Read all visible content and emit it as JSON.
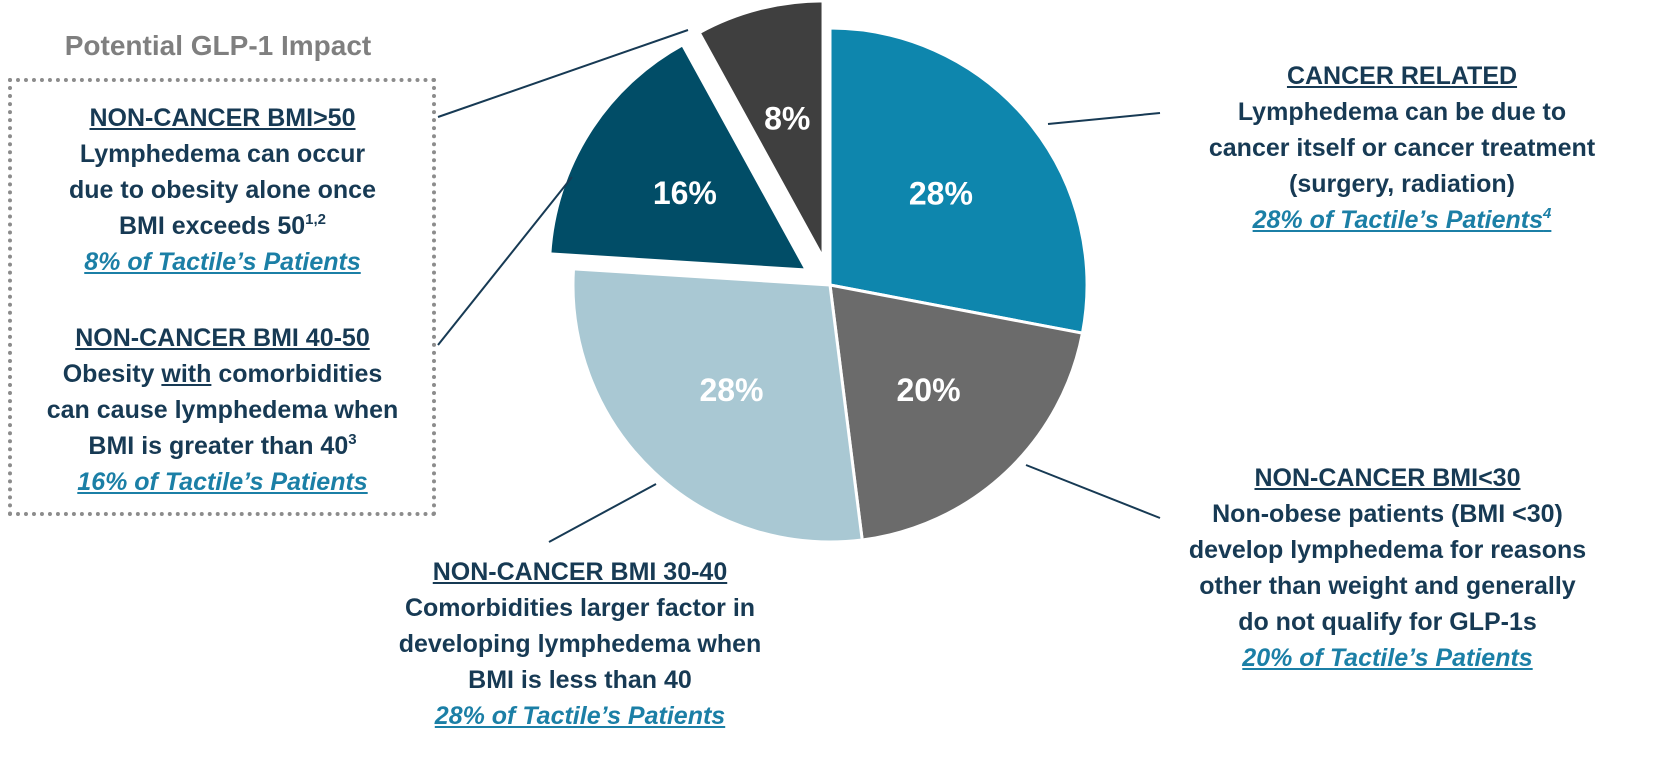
{
  "chart_data": {
    "type": "pie",
    "categories": [
      "CANCER RELATED",
      "NON-CANCER BMI<30",
      "NON-CANCER BMI 30-40",
      "NON-CANCER BMI 40-50",
      "NON-CANCER BMI>50"
    ],
    "values": [
      28,
      20,
      28,
      16,
      8
    ],
    "value_labels": [
      "28%",
      "20%",
      "28%",
      "16%",
      "8%"
    ],
    "colors": [
      "#0e86ad",
      "#6b6b6b",
      "#a9c8d3",
      "#014d67",
      "#3f3f3f"
    ],
    "exploded": [
      "NON-CANCER BMI 40-50",
      "NON-CANCER BMI>50"
    ]
  },
  "impact_group": {
    "title": "Potential GLP-1 Impact"
  },
  "callouts": {
    "bmi50": {
      "head": "NON-CANCER BMI>50",
      "line1": "Lymphedema can occur",
      "line2": "due to obesity alone once",
      "line3": "BMI exceeds 50",
      "sup": "1,2",
      "patients": "8% of Tactile’s Patients"
    },
    "bmi40_50": {
      "head": "NON-CANCER BMI 40-50",
      "line1_pre": "Obesity ",
      "line1_u": "with",
      "line1_post": " comorbidities",
      "line2": "can cause lymphedema when",
      "line3": "BMI is greater than 40",
      "sup": "3",
      "patients": "16% of Tactile’s Patients"
    },
    "cancer": {
      "head": "CANCER RELATED",
      "line1": "Lymphedema can be due to",
      "line2": "cancer itself or cancer treatment",
      "line3": "(surgery, radiation)",
      "patients": "28% of Tactile’s Patients",
      "sup": "4"
    },
    "bmi_lt30": {
      "head": "NON-CANCER BMI<30",
      "line1": "Non-obese patients (BMI <30)",
      "line2": "develop lymphedema for reasons",
      "line3": "other than weight and generally",
      "line4": "do not qualify for GLP-1s",
      "patients": "20% of Tactile’s Patients"
    },
    "bmi30_40": {
      "head": "NON-CANCER BMI 30-40",
      "line1": "Comorbidities larger factor in",
      "line2": "developing lymphedema when",
      "line3": "BMI is less than 40",
      "patients": "28% of Tactile’s Patients"
    }
  }
}
